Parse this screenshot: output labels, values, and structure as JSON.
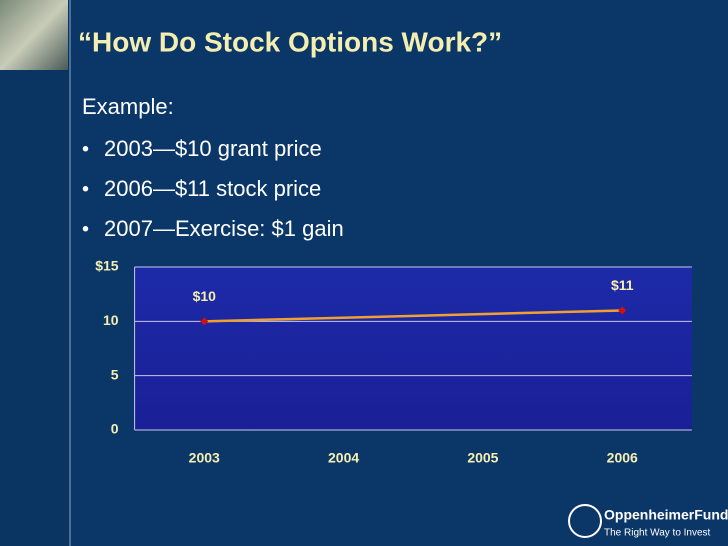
{
  "title": "“How Do Stock Options Work?”",
  "intro": "Example:",
  "bullets": [
    "2003—$10 grant price",
    "2006—$11 stock price",
    "2007—Exercise: $1 gain"
  ],
  "logo": {
    "name": "OppenheimerFunds",
    "tagline": "The Right Way to Invest"
  },
  "chart_data": {
    "type": "line",
    "x": [
      2003,
      2006
    ],
    "values": [
      10,
      11
    ],
    "value_labels": [
      "$10",
      "$11"
    ],
    "xlim": [
      2002.5,
      2006.5
    ],
    "xticks": [
      2003,
      2004,
      2005,
      2006
    ],
    "ylim": [
      0,
      15
    ],
    "yticks": [
      0,
      5,
      10,
      {
        "value": 15,
        "label": "$15"
      }
    ],
    "color": "#f0a030",
    "marker_color": "#d01010",
    "grid": true
  }
}
